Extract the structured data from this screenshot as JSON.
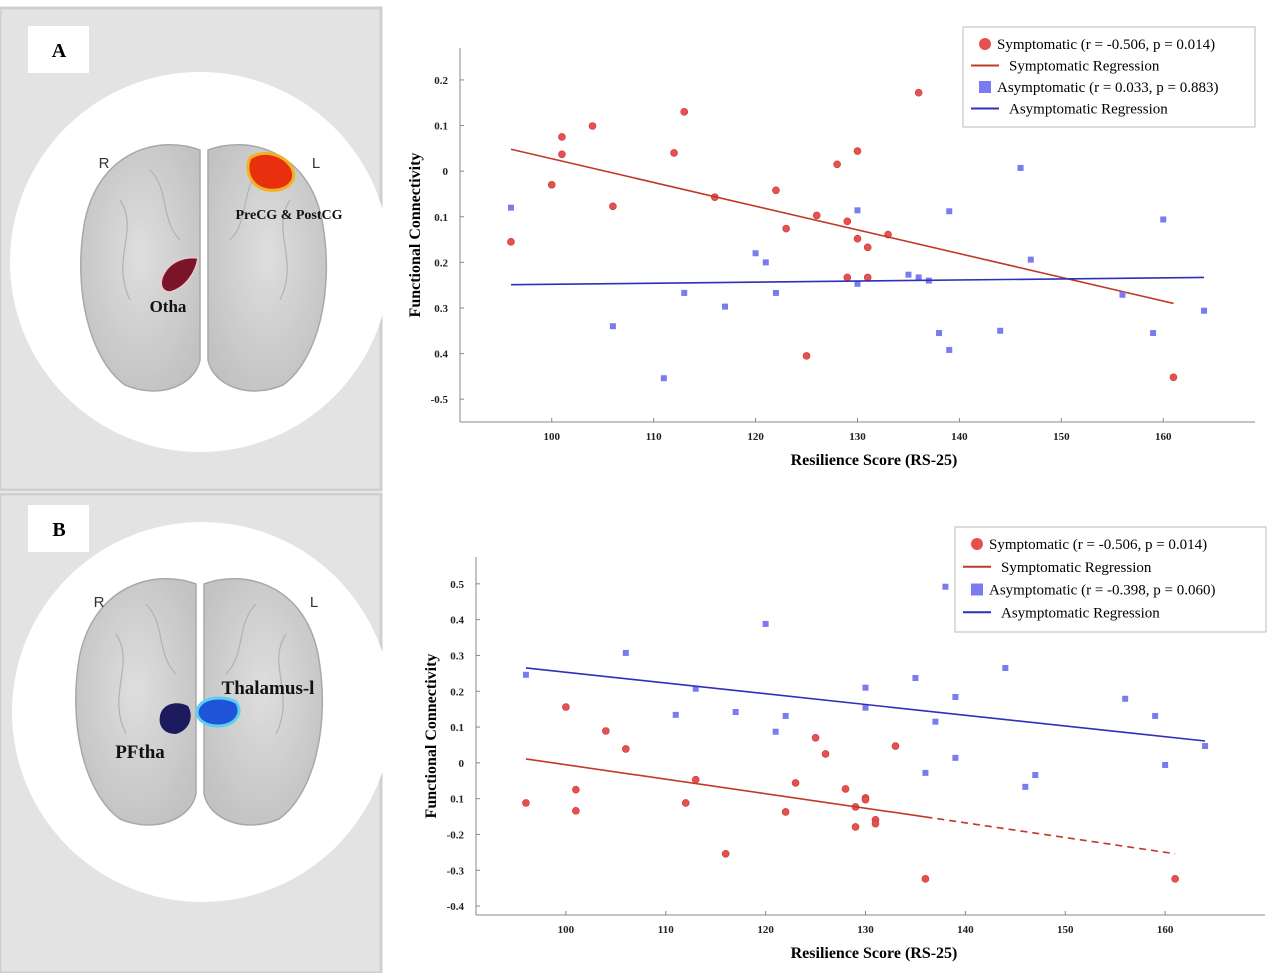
{
  "panels": [
    {
      "label": "A",
      "left": "R",
      "right": "L",
      "regions": [
        "PreCG & PostCG",
        "Otha"
      ]
    },
    {
      "label": "B",
      "left": "R",
      "right": "L",
      "regions": [
        "Thalamus-l",
        "PFtha"
      ]
    }
  ],
  "chart_data": [
    {
      "type": "scatter",
      "xlabel": "Resilience Score (RS-25)",
      "ylabel": "Functional Connectivity",
      "xlim": [
        91,
        169
      ],
      "xticks": [
        100,
        110,
        120,
        130,
        140,
        150,
        160
      ],
      "ylim": [
        -0.55,
        0.27
      ],
      "yticks": [
        0.2,
        0.1,
        0,
        {
          "value": -0.1,
          "label": "0.1"
        },
        {
          "value": -0.2,
          "label": "0.2"
        },
        {
          "value": -0.3,
          "label": "0.3"
        },
        {
          "value": -0.4,
          "label": "0.4"
        },
        -0.5
      ],
      "legend": "upper right",
      "series": [
        {
          "name": "Symptomatic (r = -0.506, p = 0.014)",
          "color": "#e8504f",
          "marker": "circle",
          "x": [
            96,
            100,
            101,
            101,
            104,
            106,
            112,
            113,
            116,
            122,
            123,
            125,
            126,
            128,
            129,
            129,
            130,
            130,
            131,
            131,
            133,
            136,
            161
          ],
          "values": [
            -0.155,
            -0.03,
            0.075,
            0.037,
            0.099,
            -0.077,
            0.04,
            0.13,
            -0.057,
            -0.042,
            -0.126,
            -0.405,
            -0.097,
            0.015,
            -0.11,
            -0.233,
            0.044,
            -0.148,
            -0.167,
            -0.233,
            -0.139,
            0.172,
            -0.452
          ]
        },
        {
          "name": "Symptomatic Regression",
          "color": "#c0392b",
          "marker": "line",
          "x": [
            96,
            161
          ],
          "values": [
            0.048,
            -0.29
          ]
        },
        {
          "name": "Asymptomatic (r = 0.033, p = 0.883)",
          "color": "#7b7bf0",
          "marker": "square",
          "x": [
            96,
            106,
            111,
            113,
            117,
            120,
            121,
            122,
            130,
            130,
            135,
            136,
            137,
            138,
            139,
            139,
            144,
            146,
            147,
            156,
            159,
            160,
            164
          ],
          "values": [
            -0.08,
            -0.34,
            -0.454,
            -0.267,
            -0.297,
            -0.18,
            -0.2,
            -0.267,
            -0.086,
            -0.247,
            -0.227,
            -0.233,
            -0.24,
            -0.355,
            -0.088,
            -0.392,
            -0.35,
            0.007,
            -0.194,
            -0.271,
            -0.355,
            -0.106,
            -0.306
          ]
        },
        {
          "name": "Asymptomatic Regression",
          "color": "#2f2fb8",
          "marker": "line",
          "x": [
            96,
            164
          ],
          "values": [
            -0.249,
            -0.233
          ]
        }
      ]
    },
    {
      "type": "scatter",
      "xlabel": "Resilience Score (RS-25)",
      "ylabel": "Functional Connectivity",
      "xlim": [
        91,
        170
      ],
      "xticks": [
        100,
        110,
        120,
        130,
        140,
        150,
        160
      ],
      "ylim": [
        -0.425,
        0.575
      ],
      "yticks": [
        0.5,
        0.4,
        0.3,
        0.2,
        0.1,
        0,
        {
          "value": -0.1,
          "label": "0.1"
        },
        -0.2,
        -0.3,
        -0.4
      ],
      "legend": "upper right",
      "series": [
        {
          "name": "Symptomatic (r = -0.506, p = 0.014)",
          "color": "#e8504f",
          "marker": "circle",
          "x": [
            96,
            100,
            101,
            101,
            104,
            106,
            112,
            113,
            116,
            122,
            123,
            125,
            126,
            128,
            129,
            129,
            130,
            130,
            131,
            131,
            133,
            136,
            161
          ],
          "values": [
            -0.112,
            0.156,
            -0.075,
            -0.134,
            0.089,
            0.039,
            -0.112,
            -0.047,
            -0.254,
            -0.137,
            -0.056,
            0.07,
            0.025,
            -0.073,
            -0.123,
            -0.179,
            -0.098,
            -0.103,
            -0.159,
            -0.17,
            0.047,
            -0.324,
            -0.324
          ]
        },
        {
          "name": "Symptomatic Regression",
          "color": "#c0392b",
          "marker": "line",
          "segment_dash": [
            false,
            true
          ],
          "x": [
            96,
            136,
            161
          ],
          "values": [
            0.011,
            -0.151,
            -0.254
          ]
        },
        {
          "name": "Asymptomatic (r = -0.398, p = 0.060)",
          "color": "#7b7bf0",
          "marker": "square",
          "x": [
            96,
            106,
            111,
            113,
            117,
            120,
            121,
            122,
            130,
            130,
            135,
            136,
            137,
            138,
            139,
            139,
            144,
            146,
            147,
            156,
            159,
            160,
            164
          ],
          "values": [
            0.246,
            0.307,
            0.134,
            0.207,
            0.142,
            0.388,
            0.087,
            0.131,
            0.21,
            0.154,
            0.237,
            -0.028,
            0.115,
            0.492,
            0.184,
            0.014,
            0.265,
            -0.067,
            -0.034,
            0.179,
            0.131,
            -0.006,
            0.047
          ]
        },
        {
          "name": "Asymptomatic Regression",
          "color": "#2f2fb8",
          "marker": "line",
          "x": [
            96,
            164
          ],
          "values": [
            0.265,
            0.061
          ]
        }
      ]
    }
  ]
}
